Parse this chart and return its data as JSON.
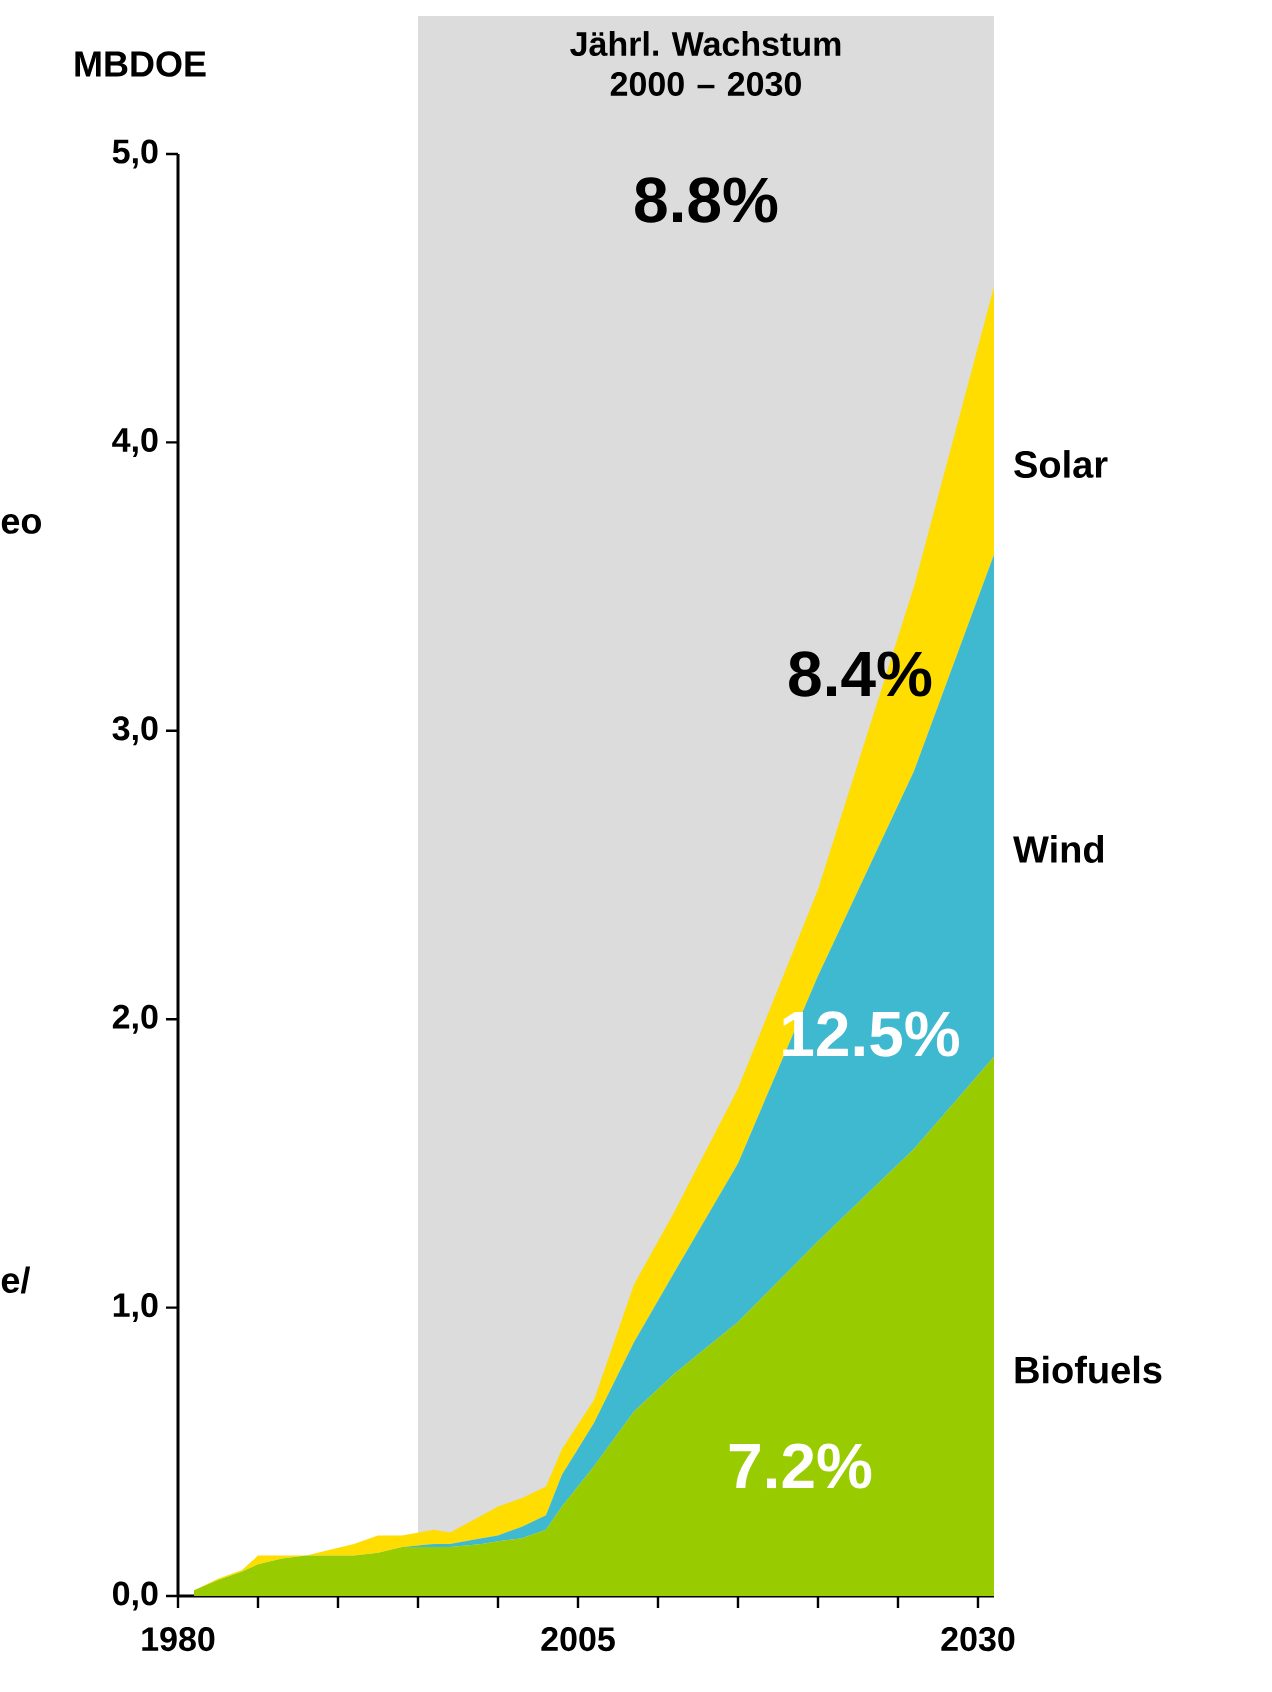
{
  "chart_data": {
    "type": "area",
    "stacked": true,
    "title": "Jährl. Wachstum 2000 – 2030",
    "ylabel": "MBDOE",
    "x": [
      1981,
      1982.5,
      1984,
      1985,
      1986.5,
      1988,
      1991,
      1992.5,
      1994,
      1996,
      1997,
      1999,
      2000,
      2001.5,
      2003,
      2004,
      2006,
      2008.5,
      2011,
      2015,
      2020,
      2026,
      2031
    ],
    "series": [
      {
        "name": "Biofuels",
        "color": "#99cc00",
        "values": [
          0.02,
          0.055,
          0.085,
          0.11,
          0.13,
          0.14,
          0.14,
          0.15,
          0.17,
          0.17,
          0.17,
          0.18,
          0.19,
          0.2,
          0.23,
          0.31,
          0.45,
          0.64,
          0.77,
          0.95,
          1.23,
          1.55,
          1.87
        ]
      },
      {
        "name": "Wind",
        "color": "#3fb9d0",
        "values": [
          0,
          0,
          0,
          0,
          0,
          0,
          0,
          0,
          0,
          0.01,
          0.01,
          0.02,
          0.02,
          0.04,
          0.05,
          0.11,
          0.15,
          0.24,
          0.35,
          0.55,
          0.92,
          1.31,
          1.74
        ]
      },
      {
        "name": "Solar",
        "color": "#ffdd00",
        "values": [
          0,
          0.005,
          0.005,
          0.03,
          0.01,
          0,
          0.04,
          0.06,
          0.04,
          0.05,
          0.04,
          0.08,
          0.1,
          0.1,
          0.1,
          0.09,
          0.08,
          0.2,
          0.21,
          0.26,
          0.3,
          0.64,
          0.93
        ]
      }
    ],
    "xlim": [
      1980,
      2031
    ],
    "ylim": [
      0,
      5
    ],
    "xticks": [
      1980,
      {
        "value": 1985,
        "label": null
      },
      {
        "value": 1990,
        "label": null
      },
      {
        "value": 1995,
        "label": null
      },
      {
        "value": 2000,
        "label": null
      },
      2005,
      {
        "value": 2010,
        "label": null
      },
      {
        "value": 2015,
        "label": null
      },
      {
        "value": 2020,
        "label": null
      },
      {
        "value": 2025,
        "label": null
      },
      2030
    ],
    "yticks": [
      {
        "value": 0,
        "label": "0,0"
      },
      {
        "value": 1,
        "label": "1,0"
      },
      {
        "value": 2,
        "label": "2,0"
      },
      {
        "value": 3,
        "label": "3,0"
      },
      {
        "value": 4,
        "label": "4,0"
      },
      {
        "value": 5,
        "label": "5,0"
      }
    ],
    "bands": [
      {
        "axis": "x",
        "from": 1995,
        "to": 2031,
        "color": "#dcdcdc"
      }
    ],
    "annotations": [
      "8.8%",
      "eo",
      "e/",
      "8.4%",
      "12.5%",
      "7.2%"
    ],
    "grid": false
  }
}
